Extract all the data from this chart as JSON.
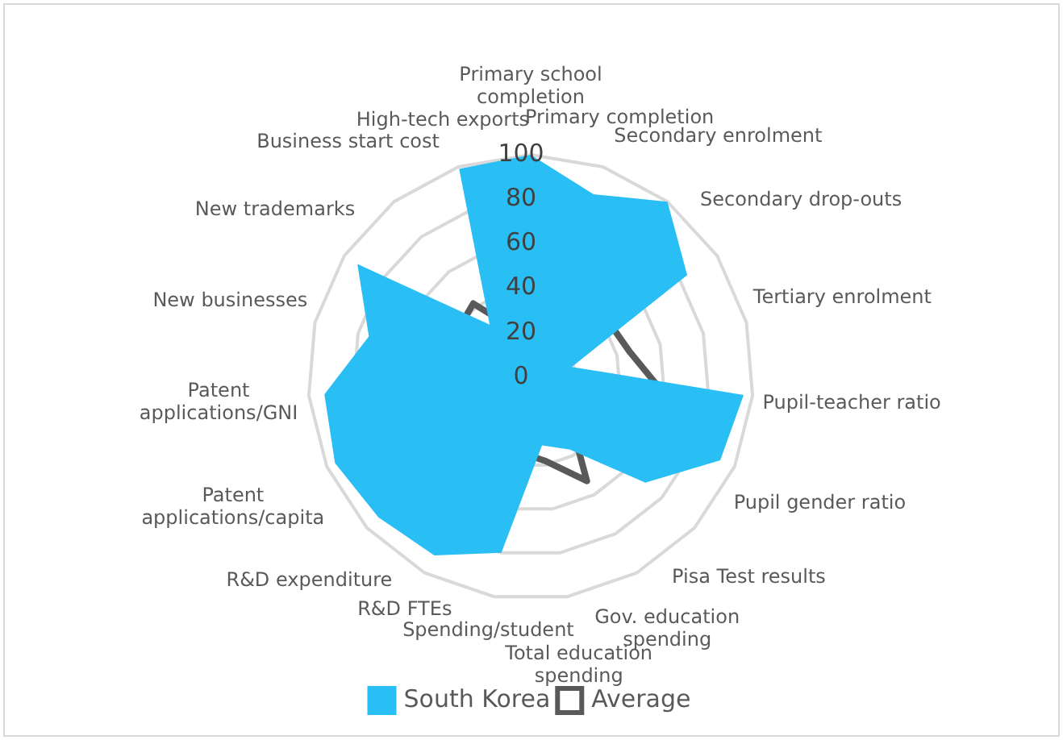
{
  "chart_data": {
    "type": "radar",
    "categories": [
      "Primary school completion",
      "Primary completion",
      "Secondary enrolment",
      "Secondary drop-outs",
      "Tertiary enrolment",
      "Pupil-teacher ratio",
      "Pupil gender ratio",
      "Pisa Test results",
      "Gov. education spending",
      "Total education spending",
      "Spending/student",
      "R&D FTEs",
      "R&D expenditure",
      "Patent applications/capita",
      "Patent applications/GNI",
      "New businesses",
      "New trademarks",
      "Business start cost",
      "High-tech exports"
    ],
    "series": [
      {
        "name": "South Korea",
        "color": "#29bff4",
        "values": [
          100,
          87,
          100,
          84,
          19,
          96,
          93,
          70,
          37,
          31,
          80,
          91,
          93,
          96,
          93,
          75,
          93,
          30,
          99
        ]
      },
      {
        "name": "Average",
        "color": "#595959",
        "values": [
          50,
          70,
          71,
          43,
          46,
          58,
          84,
          23,
          53,
          38,
          34,
          27,
          17,
          17,
          7,
          51,
          39,
          42,
          23
        ]
      }
    ],
    "ylim": [
      0,
      100
    ],
    "yticks": [
      0,
      20,
      40,
      60,
      80,
      100
    ],
    "grid": true,
    "legend": "bottom",
    "marker": "none"
  }
}
